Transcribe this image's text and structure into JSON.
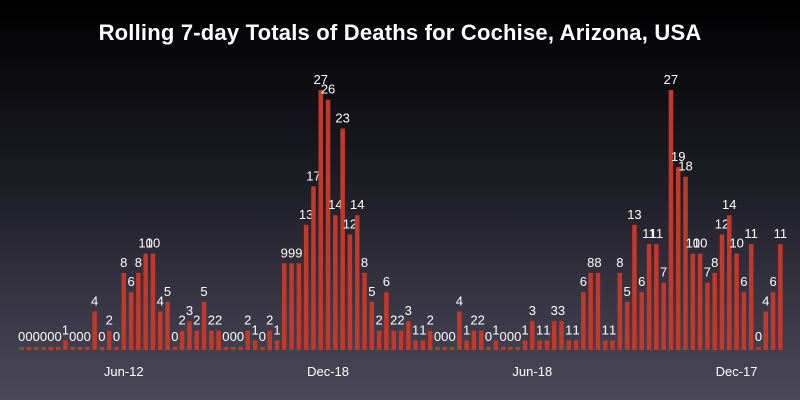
{
  "chart_data": {
    "type": "bar",
    "title": "Rolling 7-day Totals of Deaths for Cochise, Arizona, USA",
    "xlabel": "",
    "ylabel": "",
    "ylim": [
      0,
      27
    ],
    "grid": false,
    "bar_color": "#c0392b",
    "tick_labels": [
      {
        "label": "Jun-12",
        "index": 14
      },
      {
        "label": "Dec-18",
        "index": 42
      },
      {
        "label": "Jun-18",
        "index": 70
      },
      {
        "label": "Dec-17",
        "index": 98
      }
    ],
    "values": [
      0,
      0,
      0,
      0,
      0,
      0,
      1,
      0,
      0,
      0,
      4,
      0,
      2,
      0,
      8,
      6,
      8,
      10,
      10,
      4,
      5,
      0,
      2,
      3,
      2,
      5,
      2,
      2,
      0,
      0,
      0,
      2,
      1,
      0,
      2,
      1,
      9,
      9,
      9,
      13,
      17,
      27,
      26,
      14,
      23,
      12,
      14,
      8,
      5,
      2,
      6,
      2,
      2,
      3,
      1,
      1,
      2,
      0,
      0,
      0,
      4,
      1,
      2,
      2,
      0,
      1,
      0,
      0,
      0,
      1,
      3,
      1,
      1,
      3,
      3,
      1,
      1,
      6,
      8,
      8,
      1,
      1,
      8,
      5,
      13,
      6,
      11,
      11,
      7,
      27,
      19,
      18,
      10,
      10,
      7,
      8,
      12,
      14,
      10,
      6,
      11,
      0,
      4,
      6,
      11
    ]
  }
}
